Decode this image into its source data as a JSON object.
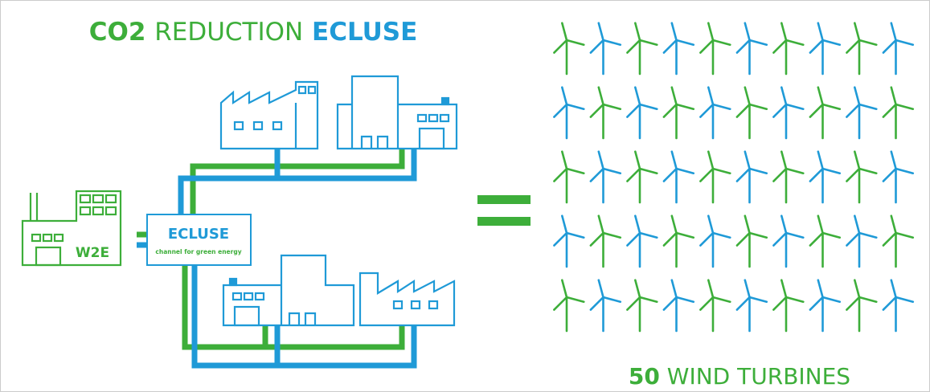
{
  "header": {
    "title": {
      "lead": "CO2",
      "middle": "REDUCTION",
      "brand": "ECLUSE"
    }
  },
  "nodes": {
    "source": "W2E",
    "hub": {
      "name": "ECLUSE",
      "tagline": "channel for green energy"
    }
  },
  "result": {
    "count": 50,
    "label": "WIND TURBINES"
  }
}
